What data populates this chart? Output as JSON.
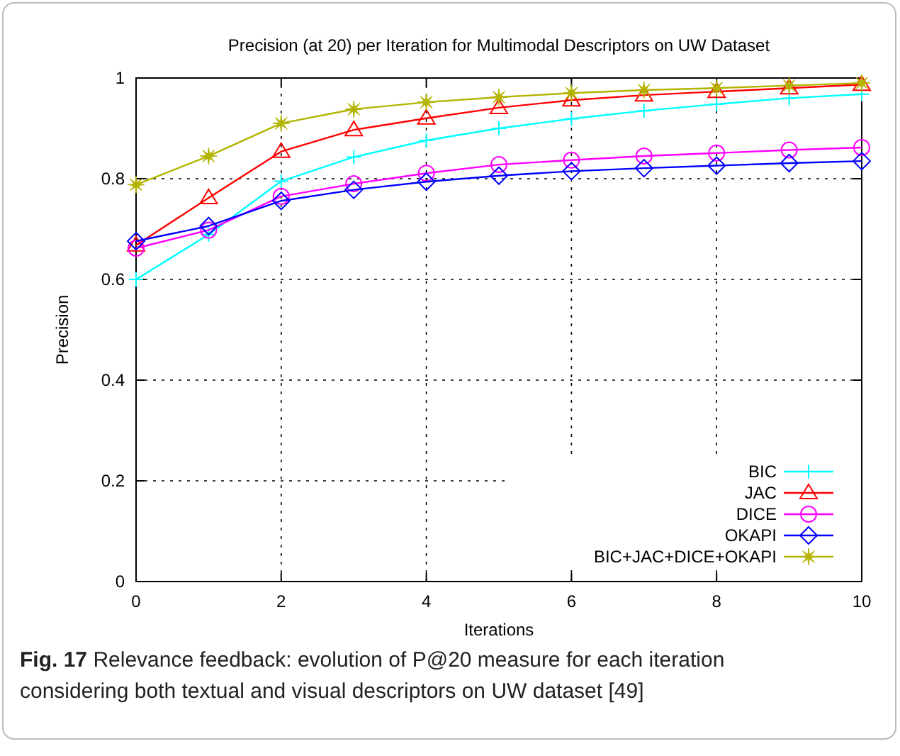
{
  "chart_data": {
    "type": "line",
    "title": "Precision (at 20) per Iteration for Multimodal Descriptors on UW Dataset",
    "xlabel": "Iterations",
    "ylabel": "Precision",
    "x": [
      0,
      1,
      2,
      3,
      4,
      5,
      6,
      7,
      8,
      9,
      10
    ],
    "xlim": [
      0,
      10
    ],
    "xticks": [
      0,
      2,
      4,
      6,
      8,
      10
    ],
    "ylim": [
      0,
      1
    ],
    "yticks": [
      0,
      0.2,
      0.4,
      0.6,
      0.8,
      1
    ],
    "grid": true,
    "legend": "bottom right",
    "series": [
      {
        "name": "BIC",
        "color": "#00ffff",
        "marker": "cross",
        "values": [
          0.6,
          0.689,
          0.795,
          0.843,
          0.876,
          0.9,
          0.919,
          0.935,
          0.948,
          0.96,
          0.968
        ]
      },
      {
        "name": "JAC",
        "color": "#ff0000",
        "marker": "triangle",
        "values": [
          0.668,
          0.762,
          0.854,
          0.897,
          0.92,
          0.941,
          0.956,
          0.966,
          0.973,
          0.98,
          0.987
        ]
      },
      {
        "name": "DICE",
        "color": "#ff00ff",
        "marker": "circle",
        "values": [
          0.662,
          0.698,
          0.765,
          0.79,
          0.811,
          0.828,
          0.837,
          0.845,
          0.851,
          0.857,
          0.862
        ]
      },
      {
        "name": "OKAPI",
        "color": "#0000ff",
        "marker": "diamond",
        "values": [
          0.676,
          0.706,
          0.756,
          0.778,
          0.794,
          0.806,
          0.815,
          0.821,
          0.826,
          0.831,
          0.835
        ]
      },
      {
        "name": "BIC+JAC+DICE+OKAPI",
        "color": "#b3b300",
        "marker": "star",
        "values": [
          0.788,
          0.845,
          0.91,
          0.938,
          0.952,
          0.962,
          0.97,
          0.976,
          0.98,
          0.985,
          0.99
        ]
      }
    ],
    "annotations": [
      "Fig. 17 Relevance feedback: evolution of P@20 measure for each iteration considering both textual and visual descriptors on UW dataset [49]"
    ]
  }
}
